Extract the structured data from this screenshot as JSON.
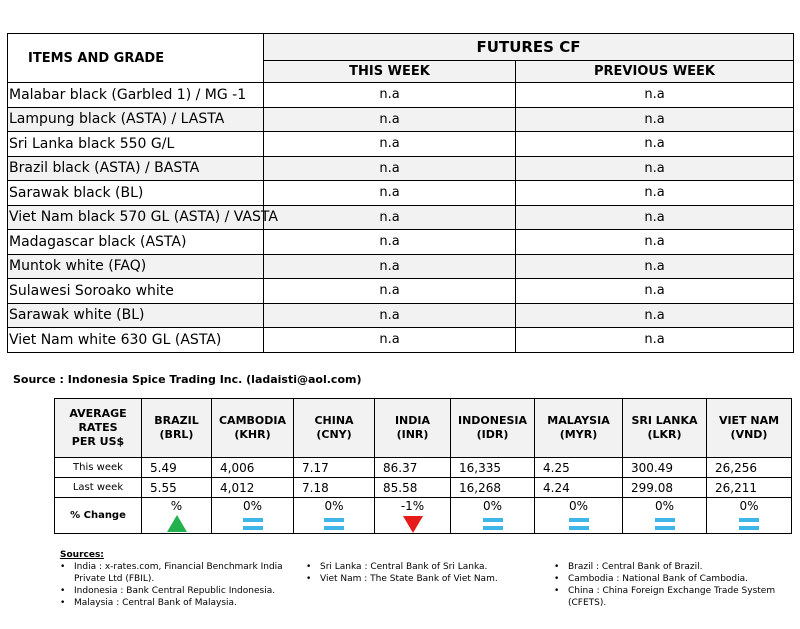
{
  "futures_table": {
    "items_header": "ITEMS AND GRADE",
    "futures_header": "FUTURES CF",
    "this_week_header": "THIS WEEK",
    "previous_week_header": "PREVIOUS WEEK",
    "rows": [
      {
        "item": "Malabar black (Garbled 1) / MG -1",
        "this_week": "n.a",
        "previous_week": "n.a"
      },
      {
        "item": "Lampung black (ASTA) / LASTA",
        "this_week": "n.a",
        "previous_week": "n.a"
      },
      {
        "item": "Sri Lanka black 550 G/L",
        "this_week": "n.a",
        "previous_week": "n.a"
      },
      {
        "item": "Brazil black (ASTA) / BASTA",
        "this_week": "n.a",
        "previous_week": "n.a"
      },
      {
        "item": "Sarawak black (BL)",
        "this_week": "n.a",
        "previous_week": "n.a"
      },
      {
        "item": "Viet Nam black 570 GL (ASTA) / VASTA",
        "this_week": "n.a",
        "previous_week": "n.a"
      },
      {
        "item": "Madagascar black (ASTA)",
        "this_week": "n.a",
        "previous_week": "n.a"
      },
      {
        "item": "Muntok white (FAQ)",
        "this_week": "n.a",
        "previous_week": "n.a"
      },
      {
        "item": "Sulawesi Soroako white",
        "this_week": "n.a",
        "previous_week": "n.a"
      },
      {
        "item": "Sarawak  white (BL)",
        "this_week": "n.a",
        "previous_week": "n.a"
      },
      {
        "item": "Viet Nam white 630 GL (ASTA)",
        "this_week": "n.a",
        "previous_week": "n.a"
      }
    ]
  },
  "source_note": "Source : Indonesia Spice Trading Inc. (ladaisti@aol.com)",
  "rates_table": {
    "header_label": [
      "AVERAGE",
      "RATES",
      "PER US$"
    ],
    "currencies": [
      {
        "country": "BRAZIL",
        "code": "(BRL)",
        "this_week": "5.49",
        "last_week": "5.55",
        "change": "%",
        "indicator": "up-triangle-icon",
        "color": "#22b14c"
      },
      {
        "country": "CAMBODIA",
        "code": "(KHR)",
        "this_week": "4,006",
        "last_week": "4,012",
        "change": "0%",
        "indicator": "equal-icon",
        "color": "#3fb6e8"
      },
      {
        "country": "CHINA",
        "code": "(CNY)",
        "this_week": "7.17",
        "last_week": "7.18",
        "change": "0%",
        "indicator": "equal-icon",
        "color": "#3fb6e8"
      },
      {
        "country": "INDIA",
        "code": "(INR)",
        "this_week": "86.37",
        "last_week": "85.58",
        "change": "-1%",
        "indicator": "down-triangle-icon",
        "color": "#e61b1b"
      },
      {
        "country": "INDONESIA",
        "code": "(IDR)",
        "this_week": "16,335",
        "last_week": "16,268",
        "change": "0%",
        "indicator": "equal-icon",
        "color": "#3fb6e8"
      },
      {
        "country": "MALAYSIA",
        "code": "(MYR)",
        "this_week": "4.25",
        "last_week": "4.24",
        "change": "0%",
        "indicator": "equal-icon",
        "color": "#3fb6e8"
      },
      {
        "country": "SRI LANKA",
        "code": "(LKR)",
        "this_week": "300.49",
        "last_week": "299.08",
        "change": "0%",
        "indicator": "equal-icon",
        "color": "#3fb6e8"
      },
      {
        "country": "VIET NAM",
        "code": "(VND)",
        "this_week": "26,256",
        "last_week": "26,211",
        "change": "0%",
        "indicator": "equal-icon",
        "color": "#3fb6e8"
      }
    ],
    "row_labels": {
      "this_week": "This week",
      "last_week": "Last week",
      "change": "% Change"
    }
  },
  "sources": {
    "title": "Sources:",
    "col1": [
      "India : x-rates.com, Financial Benchmark India Private Ltd (FBIL).",
      "Indonesia : Bank Central Republic Indonesia.",
      "Malaysia : Central Bank of Malaysia."
    ],
    "col2": [
      "Sri Lanka : Central Bank of Sri Lanka.",
      "Viet Nam : The State Bank of Viet Nam."
    ],
    "col3": [
      "Brazil :  Central Bank of Brazil.",
      "Cambodia : National Bank of Cambodia.",
      "China : China Foreign Exchange Trade System (CFETS)."
    ]
  }
}
